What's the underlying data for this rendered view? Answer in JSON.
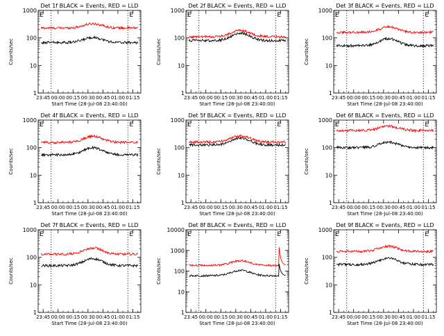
{
  "chart_data": [
    {
      "type": "line",
      "title": "Det 1f BLACK = Events, RED = LLD",
      "xlabel": "Start Time (28-Jul-08 23:40:00)",
      "ylabel": "Counts/sec",
      "y_scale": "log",
      "ylim": [
        1,
        1000
      ],
      "y_ticks": [
        "1",
        "10",
        "100",
        "1000"
      ],
      "x_ticks": [
        "23:45",
        "00:00",
        "00:15",
        "00:30",
        "00:45",
        "01:00",
        "01:15"
      ],
      "xlim_minutes": [
        -5,
        98
      ],
      "vlines_minutes": [
        8,
        85
      ],
      "markers": [
        "E",
        "E"
      ],
      "series": [
        {
          "color": "#ff0000",
          "base": 230,
          "bump_peak": 330
        },
        {
          "color": "#000000",
          "base": 68,
          "bump_peak": 105
        }
      ]
    },
    {
      "type": "line",
      "title": "Det 2f BLACK = Events, RED = LLD",
      "xlabel": "Start Time (28-Jul-08 23:40:00)",
      "ylabel": "Counts/sec",
      "y_scale": "log",
      "ylim": [
        1,
        1000
      ],
      "y_ticks": [
        "1",
        "10",
        "100",
        "1000"
      ],
      "x_ticks": [
        "23:45",
        "00:00",
        "00:15",
        "00:30",
        "00:45",
        "01:00",
        "01:15"
      ],
      "xlim_minutes": [
        -5,
        98
      ],
      "vlines_minutes": [
        8,
        85
      ],
      "markers": [
        "E",
        "E"
      ],
      "series": [
        {
          "color": "#ff0000",
          "base": 110,
          "bump_peak": 190
        },
        {
          "color": "#000000",
          "base": 80,
          "bump_peak": 150
        }
      ]
    },
    {
      "type": "line",
      "title": "Det 3f BLACK = Events, RED = LLD",
      "xlabel": "Start Time (28-Jul-08 23:40:00)",
      "ylabel": "Counts/sec",
      "y_scale": "log",
      "ylim": [
        1,
        1000
      ],
      "y_ticks": [
        "1",
        "10",
        "100",
        "1000"
      ],
      "x_ticks": [
        "23:45",
        "00:00",
        "00:15",
        "00:30",
        "00:45",
        "01:00",
        "01:15"
      ],
      "xlim_minutes": [
        -5,
        98
      ],
      "vlines_minutes": [
        8,
        85
      ],
      "markers": [
        "E",
        "E"
      ],
      "series": [
        {
          "color": "#ff0000",
          "base": 160,
          "bump_peak": 250
        },
        {
          "color": "#000000",
          "base": 52,
          "bump_peak": 95
        }
      ]
    },
    {
      "type": "line",
      "title": "Det 4f BLACK = Events, RED = LLD",
      "xlabel": "Start Time (28-Jul-08 23:40:00)",
      "ylabel": "Counts/sec",
      "y_scale": "log",
      "ylim": [
        1,
        1000
      ],
      "y_ticks": [
        "1",
        "10",
        "100",
        "1000"
      ],
      "x_ticks": [
        "23:45",
        "00:00",
        "00:15",
        "00:30",
        "00:45",
        "01:00",
        "01:15"
      ],
      "xlim_minutes": [
        -5,
        98
      ],
      "vlines_minutes": [
        8,
        85
      ],
      "markers": [
        "E",
        "E"
      ],
      "series": [
        {
          "color": "#ff0000",
          "base": 155,
          "bump_peak": 260
        },
        {
          "color": "#000000",
          "base": 55,
          "bump_peak": 100
        }
      ]
    },
    {
      "type": "line",
      "title": "Det 5f BLACK = Events, RED = LLD",
      "xlabel": "Start Time (28-Jul-08 23:40:00)",
      "ylabel": "Counts/sec",
      "y_scale": "log",
      "ylim": [
        1,
        1000
      ],
      "y_ticks": [
        "1",
        "10",
        "100",
        "1000"
      ],
      "x_ticks": [
        "23:45",
        "00:00",
        "00:15",
        "00:30",
        "00:45",
        "01:00",
        "01:15"
      ],
      "xlim_minutes": [
        -5,
        98
      ],
      "vlines_minutes": [
        8,
        85
      ],
      "markers": [
        "E",
        "E"
      ],
      "series": [
        {
          "color": "#ff0000",
          "base": 160,
          "bump_peak": 270
        },
        {
          "color": "#000000",
          "base": 125,
          "bump_peak": 220
        }
      ]
    },
    {
      "type": "line",
      "title": "Det 6f BLACK = Events, RED = LLD",
      "xlabel": "Start Time (28-Jul-08 23:40:00)",
      "ylabel": "Counts/sec",
      "y_scale": "log",
      "ylim": [
        1,
        1000
      ],
      "y_ticks": [
        "1",
        "10",
        "100",
        "1000"
      ],
      "x_ticks": [
        "23:45",
        "00:00",
        "00:15",
        "00:30",
        "00:45",
        "01:00",
        "01:15"
      ],
      "xlim_minutes": [
        -5,
        98
      ],
      "vlines_minutes": [
        8,
        85
      ],
      "markers": [
        "E",
        "E"
      ],
      "series": [
        {
          "color": "#ff0000",
          "base": 420,
          "bump_peak": 600
        },
        {
          "color": "#000000",
          "base": 100,
          "bump_peak": 160
        }
      ]
    },
    {
      "type": "line",
      "title": "Det 7f BLACK = Events, RED = LLD",
      "xlabel": "Start Time (28-Jul-08 23:40:00)",
      "ylabel": "Counts/sec",
      "y_scale": "log",
      "ylim": [
        1,
        1000
      ],
      "y_ticks": [
        "1",
        "10",
        "100",
        "1000"
      ],
      "x_ticks": [
        "23:45",
        "00:00",
        "00:15",
        "00:30",
        "00:45",
        "01:00",
        "01:15"
      ],
      "xlim_minutes": [
        -5,
        98
      ],
      "vlines_minutes": [
        8,
        85
      ],
      "markers": [
        "E",
        "E"
      ],
      "series": [
        {
          "color": "#ff0000",
          "base": 130,
          "bump_peak": 220
        },
        {
          "color": "#000000",
          "base": 50,
          "bump_peak": 90
        }
      ]
    },
    {
      "type": "line",
      "title": "Det 8f BLACK = Events, RED = LLD",
      "xlabel": "Start Time (28-Jul-08 23:40:00)",
      "ylabel": "Counts/sec",
      "y_scale": "log",
      "ylim": [
        1,
        10000
      ],
      "y_ticks": [
        "1",
        "10",
        "100",
        "1000",
        "10000"
      ],
      "x_ticks": [
        "23:45",
        "00:00",
        "00:15",
        "00:30",
        "00:45",
        "01:00",
        "01:15"
      ],
      "xlim_minutes": [
        -5,
        98
      ],
      "vlines_minutes": [
        8,
        85
      ],
      "markers": [
        "E",
        "E"
      ],
      "series": [
        {
          "color": "#ff0000",
          "base": 190,
          "bump_peak": 320,
          "spike_minutes": 88,
          "spike_peak": 2800
        },
        {
          "color": "#000000",
          "base": 60,
          "bump_peak": 110,
          "spike_minutes": 88,
          "spike_peak": 350
        }
      ]
    },
    {
      "type": "line",
      "title": "Det 9f BLACK = Events, RED = LLD",
      "xlabel": "Start Time (28-Jul-08 23:40:00)",
      "ylabel": "Counts/sec",
      "y_scale": "log",
      "ylim": [
        1,
        1000
      ],
      "y_ticks": [
        "1",
        "10",
        "100",
        "1000"
      ],
      "x_ticks": [
        "23:45",
        "00:00",
        "00:15",
        "00:30",
        "00:45",
        "01:00",
        "01:15"
      ],
      "xlim_minutes": [
        -5,
        98
      ],
      "vlines_minutes": [
        8,
        85
      ],
      "markers": [
        "E",
        "E"
      ],
      "series": [
        {
          "color": "#ff0000",
          "base": 165,
          "bump_peak": 250
        },
        {
          "color": "#000000",
          "base": 55,
          "bump_peak": 95
        }
      ]
    }
  ]
}
